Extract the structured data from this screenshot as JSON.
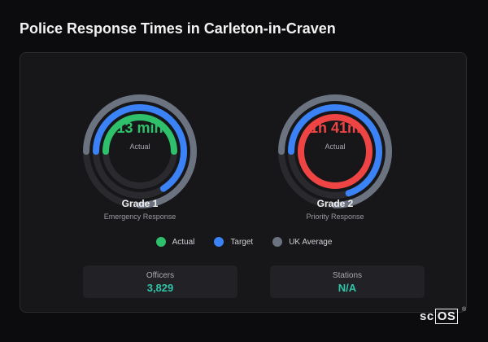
{
  "page": {
    "title": "Police Response Times in Carleton-in-Craven"
  },
  "grades": [
    {
      "title": "Grade 1",
      "subtitle": "Emergency Response",
      "value_label": "13 min",
      "value_sub": "Actual",
      "value_color": "#2ec06a",
      "rings": {
        "uk_average": 0.75,
        "target": 0.66,
        "actual": 0.5
      }
    },
    {
      "title": "Grade 2",
      "subtitle": "Priority Response",
      "value_label": "1h 41m",
      "value_sub": "Actual",
      "value_color": "#ef4444",
      "rings": {
        "uk_average": 0.75,
        "target": 0.7,
        "actual": 1.0
      }
    }
  ],
  "legend": [
    {
      "label": "Actual",
      "color": "#2ec06a"
    },
    {
      "label": "Target",
      "color": "#3b82f6"
    },
    {
      "label": "UK Average",
      "color": "#6b7280"
    }
  ],
  "stats": [
    {
      "label": "Officers",
      "value": "3,829"
    },
    {
      "label": "Stations",
      "value": "N/A"
    }
  ],
  "brand": {
    "prefix": "sc",
    "box": "OS",
    "mark": "®"
  },
  "colors": {
    "actual_green": "#2ec06a",
    "actual_red": "#ef4444",
    "target": "#3b82f6",
    "uk_average": "#6b7280",
    "track": "#2a2a2e",
    "accent_teal": "#2ec4a6"
  }
}
